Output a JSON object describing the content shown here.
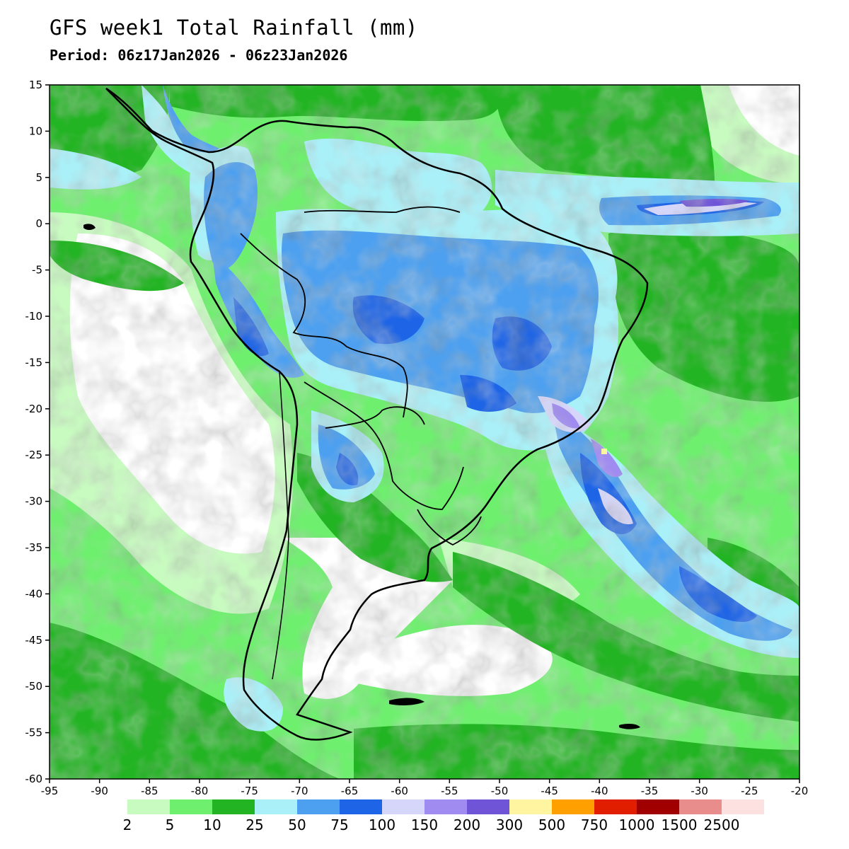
{
  "title": "GFS week1 Total Rainfall (mm)",
  "subtitle": "Period: 06z17Jan2026 - 06z23Jan2026",
  "map": {
    "lon_range": [
      -95,
      -20
    ],
    "lat_range": [
      -60,
      15
    ],
    "lon_ticks": [
      "-95",
      "-90",
      "-85",
      "-80",
      "-75",
      "-70",
      "-65",
      "-60",
      "-55",
      "-50",
      "-45",
      "-40",
      "-35",
      "-30",
      "-25",
      "-20"
    ],
    "lat_ticks": [
      "15",
      "10",
      "5",
      "0",
      "-5",
      "-10",
      "-15",
      "-20",
      "-25",
      "-30",
      "-35",
      "-40",
      "-45",
      "-50",
      "-55",
      "-60"
    ]
  },
  "colorbar": {
    "labels": [
      "2",
      "5",
      "10",
      "25",
      "50",
      "75",
      "100",
      "150",
      "200",
      "300",
      "500",
      "750",
      "1000",
      "1500",
      "2500"
    ],
    "colors": [
      "#c8fbc0",
      "#6ef06e",
      "#22b422",
      "#aaf0f8",
      "#4da0f0",
      "#1e64e6",
      "#d6d6fb",
      "#a08cf0",
      "#7054d8",
      "#fff5a0",
      "#ffa000",
      "#e11e00",
      "#a00000",
      "#e88c8c",
      "#fde0e0"
    ]
  }
}
